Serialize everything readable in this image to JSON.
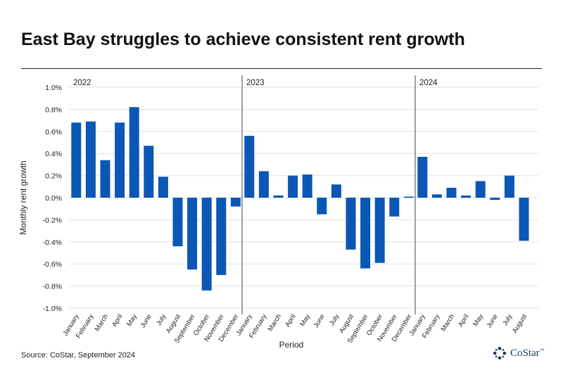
{
  "title": "East Bay struggles to achieve consistent rent growth",
  "source": "Source: CoStar, September 2024",
  "logo_text": "CoStar",
  "logo_tm": "™",
  "colors": {
    "bar": "#0a57b5",
    "text": "#222222",
    "divider": "#444444",
    "grid": "#e2e2e2"
  },
  "chart_data": {
    "type": "bar",
    "title": "East Bay struggles to achieve consistent rent growth",
    "xlabel": "Period",
    "ylabel": "Monthly rent growth",
    "ylim": [
      -1.0,
      1.0
    ],
    "yticks": [
      1.0,
      0.8,
      0.6,
      0.4,
      0.2,
      0.0,
      -0.2,
      -0.4,
      -0.6,
      -0.8,
      -1.0
    ],
    "ytick_labels": [
      "1.0%",
      "0.8%",
      "0.6%",
      "0.4%",
      "0.2%",
      "0.0%",
      "-0.2%",
      "-0.4%",
      "-0.6%",
      "-0.8%",
      "-1.0%"
    ],
    "groups": [
      {
        "year": "2022",
        "categories": [
          "January",
          "February",
          "March",
          "April",
          "May",
          "June",
          "July",
          "August",
          "September",
          "October",
          "November",
          "December"
        ],
        "values": [
          0.68,
          0.69,
          0.34,
          0.68,
          0.82,
          0.47,
          0.19,
          -0.44,
          -0.65,
          -0.84,
          -0.7,
          -0.08
        ]
      },
      {
        "year": "2023",
        "categories": [
          "January",
          "February",
          "March",
          "April",
          "May",
          "June",
          "July",
          "August",
          "September",
          "October",
          "November",
          "December"
        ],
        "values": [
          0.56,
          0.24,
          0.02,
          0.2,
          0.21,
          -0.15,
          0.12,
          -0.47,
          -0.64,
          -0.59,
          -0.17,
          0.01
        ]
      },
      {
        "year": "2024",
        "categories": [
          "January",
          "February",
          "March",
          "April",
          "May",
          "June",
          "July",
          "August"
        ],
        "values": [
          0.37,
          0.03,
          0.09,
          0.02,
          0.15,
          -0.02,
          0.2,
          -0.39
        ]
      }
    ]
  }
}
